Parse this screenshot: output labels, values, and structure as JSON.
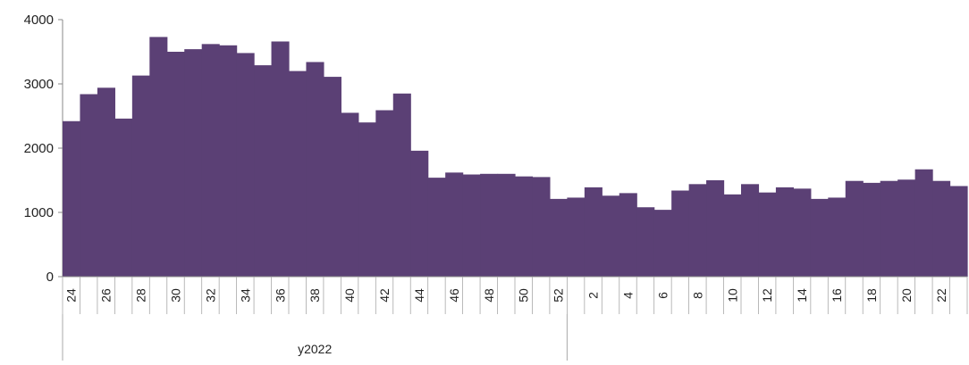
{
  "chart_data": {
    "type": "bar",
    "ylim": [
      0,
      4000
    ],
    "yticks": [
      0,
      1000,
      2000,
      3000,
      4000
    ],
    "ytick_labels": [
      "0",
      "1000",
      "2000",
      "3000",
      "4000"
    ],
    "bar_color": "#5b4075",
    "categories": [
      "24",
      "25",
      "26",
      "27",
      "28",
      "29",
      "30",
      "31",
      "32",
      "33",
      "34",
      "35",
      "36",
      "37",
      "38",
      "39",
      "40",
      "41",
      "42",
      "43",
      "44",
      "45",
      "46",
      "47",
      "48",
      "49",
      "50",
      "51",
      "52",
      "1",
      "2",
      "3",
      "4",
      "5",
      "6",
      "7",
      "8",
      "9",
      "10",
      "11",
      "12",
      "13",
      "14",
      "15",
      "16",
      "17",
      "18",
      "19",
      "20",
      "21",
      "22",
      "23"
    ],
    "tick_labels": [
      "24",
      "",
      "26",
      "",
      "28",
      "",
      "30",
      "",
      "32",
      "",
      "34",
      "",
      "36",
      "",
      "38",
      "",
      "40",
      "",
      "42",
      "",
      "44",
      "",
      "46",
      "",
      "48",
      "",
      "50",
      "",
      "52",
      "",
      "2",
      "",
      "4",
      "",
      "6",
      "",
      "8",
      "",
      "10",
      "",
      "12",
      "",
      "14",
      "",
      "16",
      "",
      "18",
      "",
      "20",
      "",
      "22",
      ""
    ],
    "values": [
      2420,
      2840,
      2940,
      2460,
      3130,
      3730,
      3500,
      3540,
      3620,
      3600,
      3480,
      3290,
      3660,
      3200,
      3340,
      3110,
      2550,
      2400,
      2590,
      2850,
      1960,
      1540,
      1620,
      1590,
      1600,
      1600,
      1560,
      1550,
      1210,
      1230,
      1390,
      1260,
      1300,
      1080,
      1040,
      1340,
      1440,
      1500,
      1280,
      1440,
      1310,
      1390,
      1370,
      1210,
      1230,
      1490,
      1460,
      1490,
      1510,
      1670,
      1490,
      1410
    ],
    "groups": [
      {
        "label": "y2022",
        "count": 29
      },
      {
        "label": "",
        "count": 23
      }
    ]
  }
}
